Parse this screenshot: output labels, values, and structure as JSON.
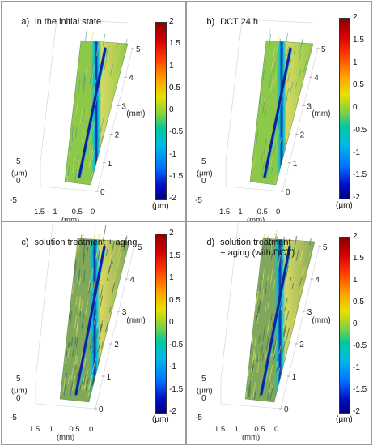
{
  "panels": [
    {
      "id": "a",
      "tag": "a)",
      "title": "in the initial state",
      "variant": "smooth"
    },
    {
      "id": "b",
      "tag": "b)",
      "title": "DCT 24 h",
      "variant": "smooth"
    },
    {
      "id": "c",
      "tag": "c)",
      "title": "solution treatment + aging",
      "variant": "rough"
    },
    {
      "id": "d",
      "tag": "d)",
      "title": "solution treatment\n+ aging (with DCT)",
      "variant": "rough"
    }
  ],
  "axes": {
    "y_ticks": [
      "0",
      "1",
      "2",
      "3",
      "4",
      "5"
    ],
    "y_unit": "(mm)",
    "x_ticks": [
      "1.5",
      "1",
      "0.5",
      "0"
    ],
    "x_unit": "(mm)",
    "z_ticks": [
      "5",
      "0",
      "-5"
    ],
    "z_unit": "(μm)"
  },
  "colorbar": {
    "ticks": [
      "2",
      "1.5",
      "1",
      "0.5",
      "0",
      "-0.5",
      "-1",
      "-1.5",
      "-2"
    ],
    "unit": "(μm)",
    "colors": [
      "#8a0000",
      "#d40000",
      "#ff3a00",
      "#ffa000",
      "#e8e000",
      "#7fd040",
      "#00c8a0",
      "#00b8e8",
      "#0070ff",
      "#0010c8",
      "#000080"
    ]
  },
  "surface_colors": {
    "base_smooth": "#8cc84a",
    "base_rough": "#7fa85a",
    "stripe_light": "#d8d860",
    "stripe_dark": "#4a9a8a",
    "groove": "#1020a0",
    "groove_edge": "#00c0e0"
  }
}
